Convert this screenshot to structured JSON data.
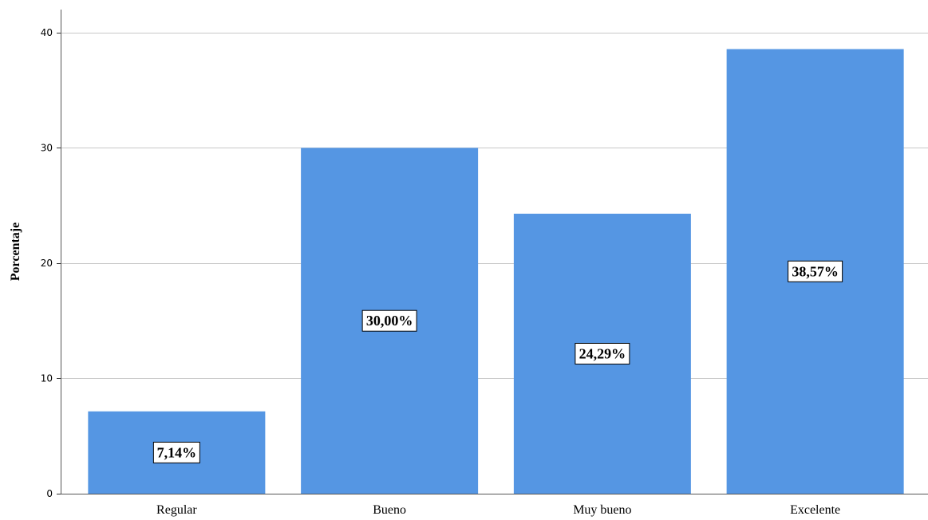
{
  "chart_data": {
    "type": "bar",
    "categories": [
      "Regular",
      "Bueno",
      "Muy bueno",
      "Excelente"
    ],
    "values": [
      7.14,
      30.0,
      24.29,
      38.57
    ],
    "data_labels": [
      "7,14%",
      "30,00%",
      "24,29%",
      "38,57%"
    ],
    "ylabel": "Porcentaje",
    "xlabel": "",
    "ylim": [
      0,
      42
    ],
    "yticks": [
      0,
      10,
      20,
      30,
      40
    ],
    "grid": true,
    "bar_color": "#5596e3",
    "grid_color": "#c8c8c8"
  }
}
